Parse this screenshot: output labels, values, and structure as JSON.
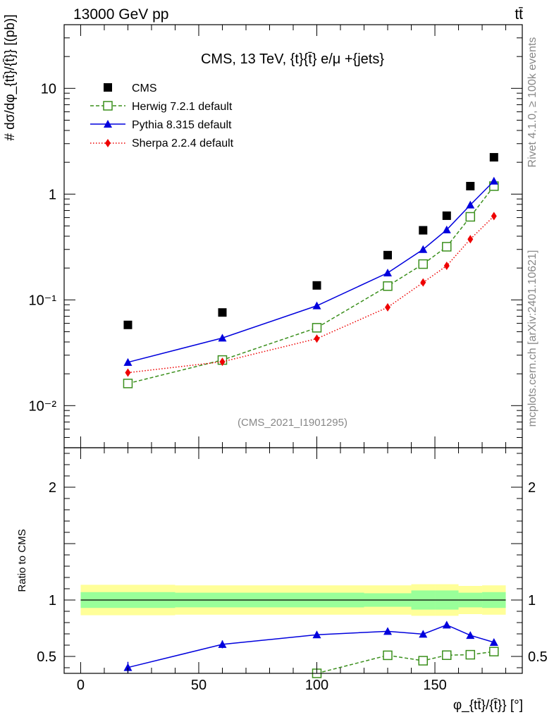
{
  "header": {
    "energy_label": "13000 GeV pp",
    "process_label": "tt̄"
  },
  "side_labels": {
    "rivet": "Rivet 4.1.0, ≥ 100k events",
    "mcplots": "mcplots.cern.ch [arXiv:2401.10621]"
  },
  "colors": {
    "cms": "#000000",
    "herwig": "#3a8f1c",
    "pythia": "#0000dd",
    "sherpa": "#ee0000",
    "band_outer": "#ffff99",
    "band_inner": "#99ff99"
  },
  "chart_data": [
    {
      "type": "scatter",
      "title": "CMS, 13 TeV, {t}{t̄} e/μ +{jets}",
      "watermark": "(CMS_2021_I1901295)",
      "ylabel": "# dσ/dφ_{tt̄}/{t̄}} [(pb)]",
      "yscale": "log",
      "ylim": [
        0.004,
        40
      ],
      "xlim": [
        -7,
        187
      ],
      "ytick_labels": [
        {
          "value": 10,
          "label": "10"
        },
        {
          "value": 1,
          "label": "1"
        },
        {
          "value": 0.1,
          "label": "10⁻¹"
        },
        {
          "value": 0.01,
          "label": "10⁻²"
        }
      ],
      "series": [
        {
          "name": "CMS",
          "key": "cms",
          "style": "data",
          "x": [
            20,
            60,
            100,
            130,
            145,
            155,
            165,
            175
          ],
          "values": [
            0.058,
            0.076,
            0.137,
            0.265,
            0.455,
            0.625,
            1.19,
            2.23
          ]
        },
        {
          "name": "Herwig 7.2.1 default",
          "key": "herwig",
          "style": "dashed-open-square",
          "x": [
            20,
            60,
            100,
            130,
            145,
            155,
            165,
            175
          ],
          "values": [
            0.0162,
            0.027,
            0.0545,
            0.135,
            0.218,
            0.318,
            0.61,
            1.19
          ]
        },
        {
          "name": "Pythia 8.315 default",
          "key": "pythia",
          "style": "solid-triangle",
          "x": [
            20,
            60,
            100,
            130,
            145,
            155,
            165,
            175
          ],
          "values": [
            0.0257,
            0.0436,
            0.088,
            0.18,
            0.3,
            0.46,
            0.79,
            1.33
          ]
        },
        {
          "name": "Sherpa 2.2.4 default",
          "key": "sherpa",
          "style": "dotted-diamond",
          "x": [
            20,
            60,
            100,
            130,
            145,
            155,
            165,
            175
          ],
          "values": [
            0.0205,
            0.026,
            0.043,
            0.085,
            0.146,
            0.21,
            0.375,
            0.62
          ]
        }
      ]
    },
    {
      "type": "line",
      "title": "",
      "ylabel": "Ratio to CMS",
      "xlabel": "φ_{tt̄}/{t̄}} [°]",
      "ylim": [
        0.35,
        2.35
      ],
      "xlim": [
        -7,
        187
      ],
      "xtick_labels": [
        "0",
        "50",
        "100",
        "150"
      ],
      "xticks": [
        0,
        50,
        100,
        150
      ],
      "ytick_labels": [
        "2",
        "1",
        "0.5"
      ],
      "yticks": [
        2,
        1,
        0.5
      ],
      "band": {
        "edges": [
          0,
          40,
          80,
          120,
          140,
          150,
          160,
          170,
          180
        ],
        "outer": [
          0.135,
          0.13,
          0.13,
          0.13,
          0.14,
          0.14,
          0.125,
          0.13
        ],
        "inner": [
          0.07,
          0.065,
          0.065,
          0.06,
          0.085,
          0.085,
          0.065,
          0.07
        ]
      },
      "series": [
        {
          "name": "Herwig 7.2.1 default",
          "key": "herwig",
          "x": [
            100,
            130,
            145,
            155,
            165,
            175
          ],
          "values": [
            0.35,
            0.51,
            0.462,
            0.511,
            0.515,
            0.543
          ],
          "errors": [
            0.02,
            0.02,
            0.025,
            0.018,
            0.012,
            0.01
          ]
        },
        {
          "name": "Pythia 8.315 default",
          "key": "pythia",
          "x": [
            20,
            60,
            100,
            130,
            145,
            155,
            165,
            175
          ],
          "values": [
            0.402,
            0.607,
            0.692,
            0.723,
            0.698,
            0.779,
            0.687,
            0.625
          ],
          "errors": [
            0.05,
            0.035,
            0.025,
            0.025,
            0.025,
            0.025,
            0.015,
            0.012
          ]
        }
      ]
    }
  ]
}
